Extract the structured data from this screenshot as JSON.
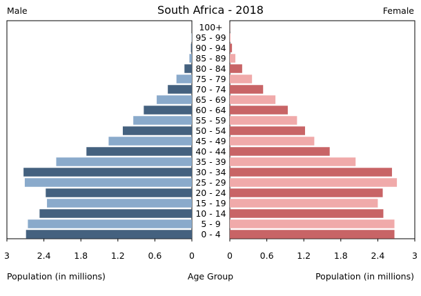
{
  "chart_data": {
    "type": "bar",
    "title": "South Africa - 2018",
    "left_label": "Male",
    "right_label": "Female",
    "xlabel_left": "Population (in millions)",
    "xlabel_center": "Age Group",
    "xlabel_right": "Population (in millions)",
    "xlim": [
      0,
      3
    ],
    "tick_labels": [
      "3",
      "2.4",
      "1.8",
      "1.2",
      "0.6",
      "0"
    ],
    "tick_values": [
      3,
      2.4,
      1.8,
      1.2,
      0.6,
      0
    ],
    "categories": [
      "100+",
      "95 - 99",
      "90 - 94",
      "85 - 89",
      "80 - 84",
      "75 - 79",
      "70 - 74",
      "65 - 69",
      "60 - 64",
      "55 - 59",
      "50 - 54",
      "45 - 49",
      "40 - 44",
      "35 - 39",
      "30 - 34",
      "25 - 29",
      "20 - 24",
      "15 - 19",
      "10 - 14",
      "5 - 9",
      "0 - 4"
    ],
    "series": [
      {
        "name": "Male",
        "values": [
          0.001,
          0.005,
          0.015,
          0.04,
          0.12,
          0.25,
          0.39,
          0.57,
          0.78,
          0.95,
          1.12,
          1.35,
          1.71,
          2.2,
          2.73,
          2.71,
          2.37,
          2.35,
          2.47,
          2.66,
          2.69
        ]
      },
      {
        "name": "Female",
        "values": [
          0.002,
          0.01,
          0.035,
          0.09,
          0.2,
          0.36,
          0.54,
          0.74,
          0.94,
          1.09,
          1.22,
          1.37,
          1.62,
          2.04,
          2.63,
          2.71,
          2.48,
          2.4,
          2.49,
          2.67,
          2.67
        ]
      }
    ],
    "colors": {
      "male_dark": "#44617f",
      "male_light": "#8aaacb",
      "female_dark": "#c86466",
      "female_light": "#f0aaaa"
    }
  }
}
